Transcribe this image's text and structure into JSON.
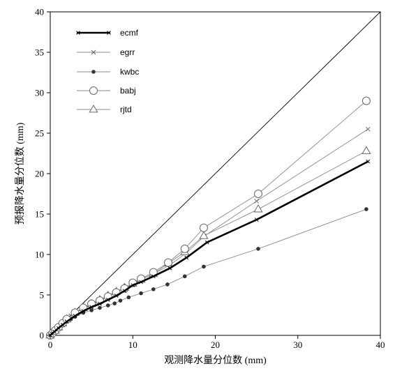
{
  "chart_data": {
    "type": "line",
    "xlabel": "观测降水量分位数 (mm)",
    "ylabel": "预报降水量分位数 (mm)",
    "xlim": [
      0,
      40
    ],
    "ylim": [
      0,
      40
    ],
    "xticks": [
      0,
      10,
      20,
      30,
      40
    ],
    "yticks": [
      0,
      5,
      10,
      15,
      20,
      25,
      30,
      35,
      40
    ],
    "grid": false,
    "legend_position": "top-left",
    "reference_line": "y = x",
    "series": [
      {
        "name": "ecmf",
        "marker": "x-small",
        "line": "thick",
        "color": "#000000",
        "x": [
          0,
          0.2,
          0.5,
          1,
          1.5,
          2,
          3,
          4,
          5,
          6,
          7,
          8,
          9,
          10,
          11,
          12.5,
          14.5,
          16.5,
          19,
          25,
          38.5
        ],
        "y": [
          0,
          0.2,
          0.45,
          0.9,
          1.3,
          1.7,
          2.4,
          3.0,
          3.5,
          3.9,
          4.4,
          4.9,
          5.5,
          6.2,
          6.6,
          7.3,
          8.3,
          9.6,
          11.5,
          14.3,
          21.5
        ]
      },
      {
        "name": "egrr",
        "marker": "x",
        "line": "thin",
        "color": "#777777",
        "x": [
          0,
          0.3,
          0.6,
          1,
          1.5,
          2,
          2.5,
          3,
          4,
          5,
          6,
          7,
          8,
          9,
          10,
          11,
          12.5,
          14.5,
          16.5,
          18.7,
          25,
          38.5
        ],
        "y": [
          0,
          0.3,
          0.6,
          1.0,
          1.5,
          2.0,
          2.4,
          2.8,
          3.4,
          3.9,
          4.4,
          4.9,
          5.4,
          5.9,
          6.4,
          6.9,
          7.6,
          8.7,
          10.2,
          12.3,
          16.6,
          25.5
        ]
      },
      {
        "name": "kwbc",
        "marker": "dot",
        "line": "thin",
        "color": "#333333",
        "x": [
          0,
          0.3,
          0.6,
          1,
          1.5,
          2,
          2.5,
          3,
          4,
          5,
          6,
          7,
          7.8,
          8.5,
          9.5,
          11,
          12.5,
          14.2,
          16.3,
          18.6,
          25.2,
          38.3
        ],
        "y": [
          0,
          0.3,
          0.55,
          0.9,
          1.3,
          1.7,
          2.0,
          2.3,
          2.8,
          3.1,
          3.4,
          3.7,
          3.95,
          4.3,
          4.7,
          5.2,
          5.7,
          6.3,
          7.3,
          8.5,
          10.7,
          15.6
        ]
      },
      {
        "name": "babj",
        "marker": "circle",
        "line": "thin",
        "color": "#777777",
        "x": [
          0,
          0.3,
          0.6,
          1,
          1.5,
          2,
          3,
          4,
          5,
          6,
          7,
          8,
          9,
          10,
          11,
          12.5,
          14.3,
          16.3,
          18.6,
          25.2,
          38.3
        ],
        "y": [
          0,
          0.3,
          0.6,
          1.0,
          1.5,
          2.0,
          2.8,
          3.4,
          3.9,
          4.3,
          4.8,
          5.3,
          5.8,
          6.5,
          7.0,
          7.8,
          9.0,
          10.7,
          13.3,
          17.5,
          29.0
        ]
      },
      {
        "name": "rjtd",
        "marker": "triangle",
        "line": "thin",
        "color": "#777777",
        "x": [
          0,
          0.3,
          0.6,
          1,
          1.5,
          2,
          3,
          4,
          5,
          6,
          7,
          8,
          9,
          10,
          11,
          12.5,
          14.3,
          16.3,
          18.6,
          25.2,
          38.3
        ],
        "y": [
          0,
          0.3,
          0.6,
          1.0,
          1.5,
          2.0,
          2.8,
          3.4,
          3.9,
          4.4,
          4.9,
          5.4,
          5.9,
          6.4,
          6.9,
          7.6,
          8.9,
          10.3,
          12.3,
          15.6,
          22.8
        ]
      }
    ]
  }
}
